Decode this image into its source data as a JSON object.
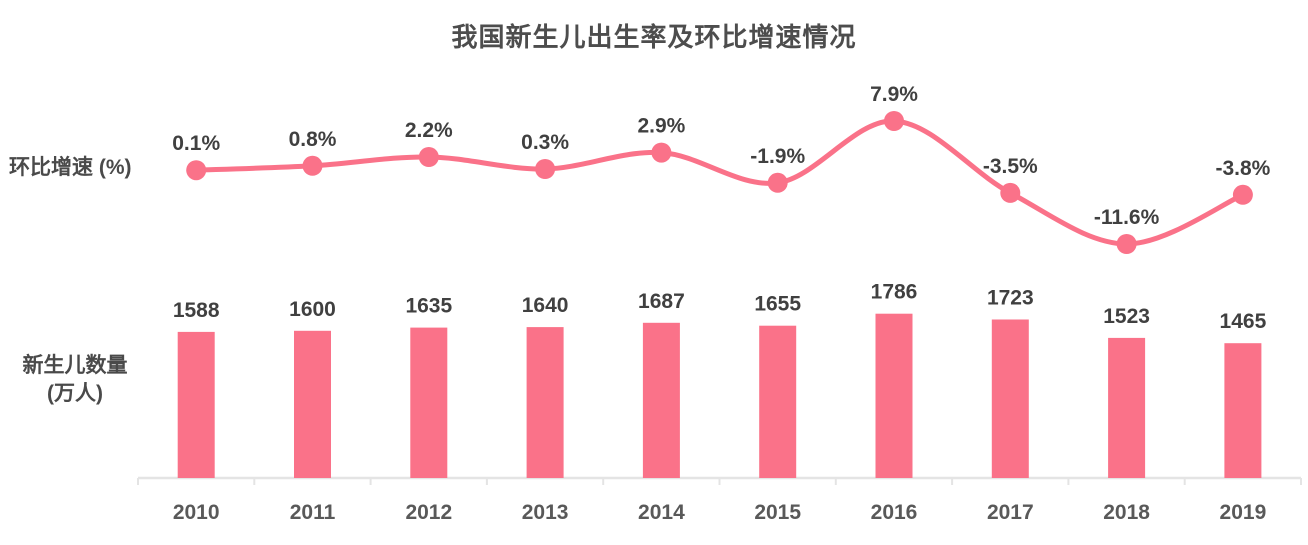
{
  "title": "我国新生儿出生率及环比增速情况",
  "axis_labels": {
    "line_series": "环比增速 (%)",
    "bar_series_line1": "新生儿数量",
    "bar_series_line2": "(万人)"
  },
  "colors": {
    "series_pink": "#fa7289",
    "axis_line": "#e4e4e4",
    "data_label": "#404040",
    "axis_tick_label": "#595959",
    "title_text": "#4d4d4d"
  },
  "chart_data": {
    "type": "combo",
    "title": "我国新生儿出生率及环比增速情况",
    "categories": [
      "2010",
      "2011",
      "2012",
      "2013",
      "2014",
      "2015",
      "2016",
      "2017",
      "2018",
      "2019"
    ],
    "series": [
      {
        "name": "环比增速 (%)",
        "type": "line",
        "unit": "%",
        "smooth": true,
        "values": [
          0.1,
          0.8,
          2.2,
          0.3,
          2.9,
          -1.9,
          7.9,
          -3.5,
          -11.6,
          -3.8
        ],
        "point_labels": [
          "0.1%",
          "0.8%",
          "2.2%",
          "0.3%",
          "2.9%",
          "-1.9%",
          "7.9%",
          "-3.5%",
          "-11.6%",
          "-3.8%"
        ]
      },
      {
        "name": "新生儿数量 (万人)",
        "type": "bar",
        "unit": "万人",
        "values": [
          1588,
          1600,
          1635,
          1640,
          1687,
          1655,
          1786,
          1723,
          1523,
          1465
        ],
        "point_labels": [
          "1588",
          "1600",
          "1635",
          "1640",
          "1687",
          "1655",
          "1786",
          "1723",
          "1523",
          "1465"
        ]
      }
    ],
    "xlabel": "",
    "ylabel": "",
    "legend_position": "none",
    "grid": false,
    "data_labels": true,
    "line_value_range_implied": [
      -11.6,
      7.9
    ],
    "bar_baseline": 0
  }
}
